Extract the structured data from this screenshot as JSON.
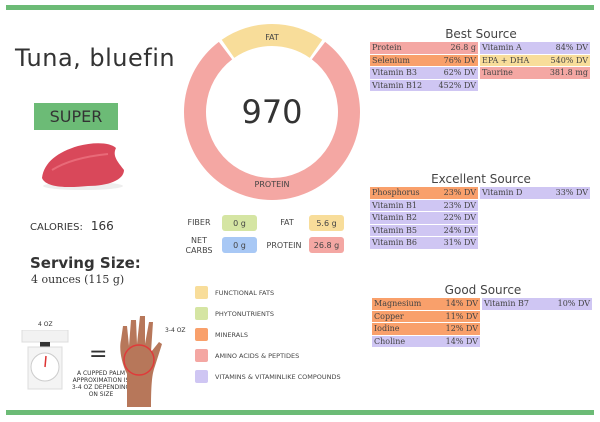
{
  "header": {
    "food_name": "Tuna, bluefin",
    "rating_badge": "SUPER"
  },
  "calories": {
    "label": "CALORIES:",
    "value": "166"
  },
  "serving": {
    "title": "Serving Size:",
    "value": "4 ounces (115 g)"
  },
  "illustration": {
    "scale_label": "4 OZ",
    "equals": "=",
    "palm_label": "3-4 OZ",
    "caption": "A CUPPED PALM APPROXIMATION IS 3-4 OZ DEPENDING ON SIZE"
  },
  "donut": {
    "score": "970",
    "segments": [
      {
        "label": "FAT",
        "fraction": 0.2,
        "color": "#f8dd9a"
      },
      {
        "label": "PROTEIN",
        "fraction": 0.8,
        "color": "#f4a7a3"
      }
    ]
  },
  "macros": [
    {
      "label": "FIBER",
      "value": "0 g",
      "color": "#d5e5a3"
    },
    {
      "label": "FAT",
      "value": "5.6 g",
      "color": "#f8dd9a"
    },
    {
      "label": "NET CARBS",
      "value": "0 g",
      "color": "#a8c8f5"
    },
    {
      "label": "PROTEIN",
      "value": "26.8 g",
      "color": "#f4a7a3"
    }
  ],
  "legend": [
    {
      "label": "FUNCTIONAL FATS",
      "color": "#f8dd9a"
    },
    {
      "label": "PHYTONUTRIENTS",
      "color": "#d5e5a3"
    },
    {
      "label": "MINERALS",
      "color": "#f9a06b"
    },
    {
      "label": "AMINO ACIDS & PEPTIDES",
      "color": "#f4a7a3"
    },
    {
      "label": "VITAMINS & VITAMINLIKE COMPOUNDS",
      "color": "#cfc6f3"
    }
  ],
  "best": {
    "title": "Best Source",
    "items": [
      {
        "name": "Protein",
        "value": "26.8 g",
        "cat": "am"
      },
      {
        "name": "Vitamin A",
        "value": "84% DV",
        "cat": "vi"
      },
      {
        "name": "Selenium",
        "value": "76% DV",
        "cat": "mi"
      },
      {
        "name": "EPA + DHA",
        "value": "540% DV",
        "cat": "fa"
      },
      {
        "name": "Vitamin B3",
        "value": "62% DV",
        "cat": "vi"
      },
      {
        "name": "Taurine",
        "value": "381.8 mg",
        "cat": "am"
      },
      {
        "name": "Vitamin B12",
        "value": "452% DV",
        "cat": "vi"
      }
    ]
  },
  "excellent": {
    "title": "Excellent Source",
    "items": [
      {
        "name": "Phosphorus",
        "value": "23% DV",
        "cat": "mi"
      },
      {
        "name": "Vitamin D",
        "value": "33% DV",
        "cat": "vi"
      },
      {
        "name": "Vitamin B1",
        "value": "23% DV",
        "cat": "vi"
      },
      null,
      {
        "name": "Vitamin B2",
        "value": "22% DV",
        "cat": "vi"
      },
      null,
      {
        "name": "Vitamin B5",
        "value": "24% DV",
        "cat": "vi"
      },
      null,
      {
        "name": "Vitamin B6",
        "value": "31% DV",
        "cat": "vi"
      }
    ]
  },
  "good": {
    "title": "Good Source",
    "items": [
      {
        "name": "Magnesium",
        "value": "14% DV",
        "cat": "mi"
      },
      {
        "name": "Vitamin B7",
        "value": "10% DV",
        "cat": "vi"
      },
      {
        "name": "Copper",
        "value": "11% DV",
        "cat": "mi"
      },
      null,
      {
        "name": "Iodine",
        "value": "12% DV",
        "cat": "mi"
      },
      null,
      {
        "name": "Choline",
        "value": "14% DV",
        "cat": "vi"
      }
    ]
  }
}
